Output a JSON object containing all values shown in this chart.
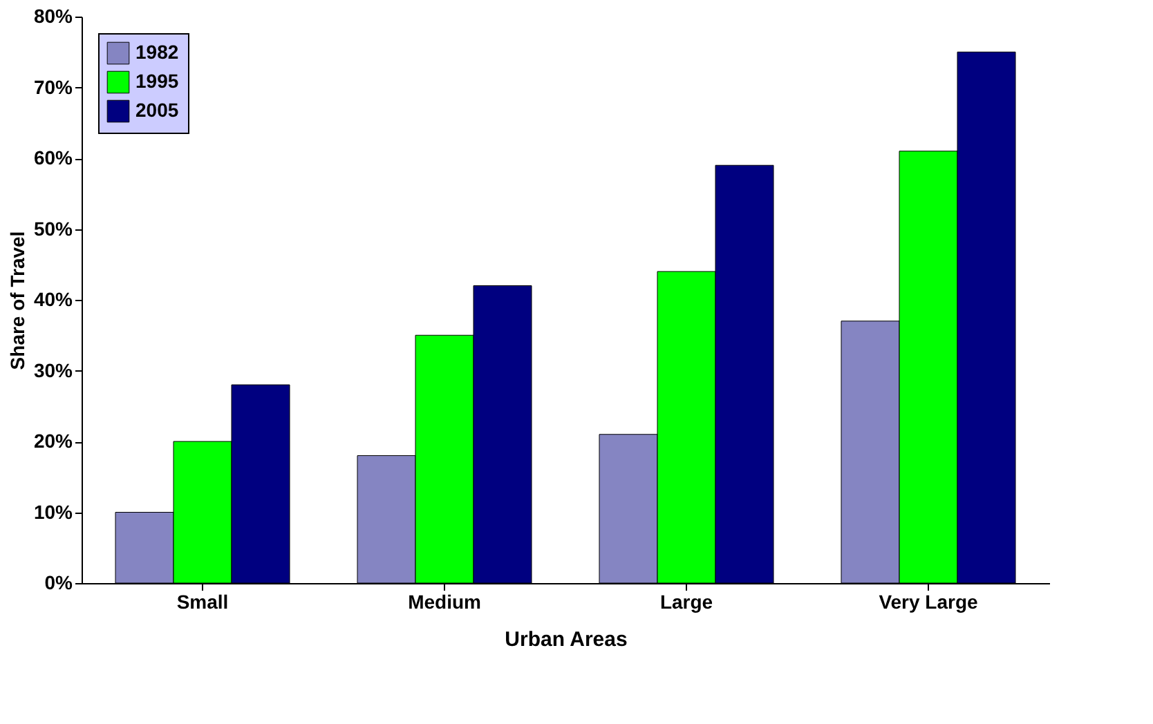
{
  "chart_data": {
    "type": "bar",
    "xlabel": "Urban Areas",
    "ylabel": "Share of Travel",
    "categories": [
      "Small",
      "Medium",
      "Large",
      "Very Large"
    ],
    "series": [
      {
        "name": "1982",
        "color": "#8585c2",
        "values": [
          10,
          18,
          21,
          37
        ]
      },
      {
        "name": "1995",
        "color": "#00ff00",
        "values": [
          20,
          35,
          44,
          61
        ]
      },
      {
        "name": "2005",
        "color": "#000080",
        "values": [
          28,
          42,
          59,
          75
        ]
      }
    ],
    "ylim": [
      0,
      80
    ],
    "yticks": [
      {
        "value": 0,
        "label": "0%"
      },
      {
        "value": 10,
        "label": "10%"
      },
      {
        "value": 20,
        "label": "20%"
      },
      {
        "value": 30,
        "label": "30%"
      },
      {
        "value": 40,
        "label": "40%"
      },
      {
        "value": 50,
        "label": "50%"
      },
      {
        "value": 60,
        "label": "60%"
      },
      {
        "value": 70,
        "label": "70%"
      },
      {
        "value": 80,
        "label": "80%"
      }
    ],
    "grid": false,
    "legend": "top left"
  }
}
